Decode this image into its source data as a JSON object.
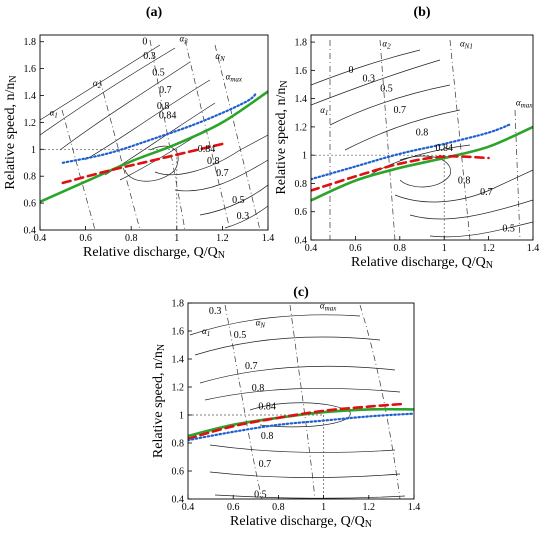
{
  "chart_data": [
    {
      "panel_label": "(a)",
      "type": "line",
      "xlabel": "Relative discharge, Q/QN",
      "ylabel": "Relative speed, n/nN",
      "xlim": [
        0.4,
        1.4
      ],
      "ylim": [
        0.4,
        1.85
      ],
      "xticks": [
        "0.4",
        "0.6",
        "0.8",
        "1",
        "1.2",
        "1.4"
      ],
      "yticks": [
        "0.4",
        "0.6",
        "0.8",
        "1",
        "1.2",
        "1.4",
        "1.6",
        "1.8"
      ],
      "series": [
        {
          "style": "green-solid",
          "color": "#2aa52a",
          "x": [
            0.4,
            0.6,
            0.8,
            1.0,
            1.2,
            1.4
          ],
          "y": [
            0.61,
            0.76,
            0.91,
            1.04,
            1.2,
            1.43
          ]
        },
        {
          "style": "red-dashed",
          "color": "#e01010",
          "x": [
            0.5,
            0.7,
            0.9,
            1.1,
            1.2
          ],
          "y": [
            0.75,
            0.84,
            0.92,
            1.0,
            1.04
          ]
        },
        {
          "style": "blue-dotted",
          "color": "#1f5fcf",
          "x": [
            0.5,
            0.7,
            0.9,
            1.1,
            1.3,
            1.35
          ],
          "y": [
            0.9,
            0.97,
            1.08,
            1.2,
            1.35,
            1.42
          ]
        }
      ],
      "reference_lines": {
        "x": 1.0,
        "y": 1.0
      },
      "contour_labels": [
        {
          "text": "0",
          "x": 0.86,
          "y": 1.78
        },
        {
          "text": "0.3",
          "x": 0.88,
          "y": 1.67
        },
        {
          "text": "0.5",
          "x": 0.92,
          "y": 1.55
        },
        {
          "text": "0.7",
          "x": 0.95,
          "y": 1.42
        },
        {
          "text": "0.8",
          "x": 0.94,
          "y": 1.3
        },
        {
          "text": "0.84",
          "x": 0.96,
          "y": 1.23
        },
        {
          "text": "0.84",
          "x": 1.13,
          "y": 0.98
        },
        {
          "text": "0.8",
          "x": 1.16,
          "y": 0.89
        },
        {
          "text": "0.7",
          "x": 1.2,
          "y": 0.8
        },
        {
          "text": "0.5",
          "x": 1.27,
          "y": 0.6
        },
        {
          "text": "0.3",
          "x": 1.29,
          "y": 0.48
        }
      ],
      "alpha_labels": [
        {
          "text": "α1",
          "x": 0.46,
          "y": 1.25
        },
        {
          "text": "α2",
          "x": 0.65,
          "y": 1.47
        },
        {
          "text": "α3",
          "x": 1.03,
          "y": 1.8
        },
        {
          "text": "αN",
          "x": 1.19,
          "y": 1.67
        },
        {
          "text": "αmax",
          "x": 1.25,
          "y": 1.52
        }
      ]
    },
    {
      "panel_label": "(b)",
      "type": "line",
      "xlabel": "Relative discharge, Q/QN",
      "ylabel": "Relative speed, n/nN",
      "xlim": [
        0.4,
        1.4
      ],
      "ylim": [
        0.4,
        1.85
      ],
      "xticks": [
        "0.4",
        "0.6",
        "0.8",
        "1",
        "1.2",
        "1.4"
      ],
      "yticks": [
        "0.4",
        "0.6",
        "0.8",
        "1",
        "1.2",
        "1.4",
        "1.6",
        "1.8"
      ],
      "series": [
        {
          "style": "green-solid",
          "color": "#2aa52a",
          "x": [
            0.4,
            0.6,
            0.8,
            1.0,
            1.2,
            1.4
          ],
          "y": [
            0.68,
            0.82,
            0.91,
            0.98,
            1.06,
            1.2
          ]
        },
        {
          "style": "red-dashed",
          "color": "#e01010",
          "x": [
            0.4,
            0.6,
            0.8,
            1.0,
            1.2
          ],
          "y": [
            0.75,
            0.85,
            0.94,
            0.99,
            0.98
          ]
        },
        {
          "style": "blue-dotted",
          "color": "#1f5fcf",
          "x": [
            0.4,
            0.6,
            0.8,
            1.0,
            1.2,
            1.3
          ],
          "y": [
            0.83,
            0.92,
            1.01,
            1.08,
            1.16,
            1.22
          ]
        }
      ],
      "reference_lines": {
        "x": 1.0,
        "y": 1.0
      },
      "contour_labels": [
        {
          "text": "0",
          "x": 0.58,
          "y": 1.58
        },
        {
          "text": "0.3",
          "x": 0.66,
          "y": 1.52
        },
        {
          "text": "0.5",
          "x": 0.74,
          "y": 1.45
        },
        {
          "text": "0.7",
          "x": 0.8,
          "y": 1.3
        },
        {
          "text": "0.8",
          "x": 0.9,
          "y": 1.14
        },
        {
          "text": "0.84",
          "x": 1.0,
          "y": 1.03
        },
        {
          "text": "0.8",
          "x": 1.09,
          "y": 0.8
        },
        {
          "text": "0.7",
          "x": 1.19,
          "y": 0.72
        },
        {
          "text": "0.5",
          "x": 1.29,
          "y": 0.46
        }
      ],
      "alpha_labels": [
        {
          "text": "α1",
          "x": 0.46,
          "y": 1.3
        },
        {
          "text": "α2",
          "x": 0.74,
          "y": 1.77
        },
        {
          "text": "αN1",
          "x": 1.1,
          "y": 1.77
        },
        {
          "text": "αmax",
          "x": 1.36,
          "y": 1.35
        }
      ]
    },
    {
      "panel_label": "(c)",
      "type": "line",
      "xlabel": "Relative discharge, Q/QN",
      "ylabel": "Relative speed, n/nN",
      "xlim": [
        0.4,
        1.4
      ],
      "ylim": [
        0.4,
        1.8
      ],
      "xticks": [
        "0.4",
        "0.6",
        "0.8",
        "1",
        "1.2",
        "1.4"
      ],
      "yticks": [
        "0.4",
        "0.6",
        "0.8",
        "1",
        "1.2",
        "1.4",
        "1.6",
        "1.8"
      ],
      "series": [
        {
          "style": "green-solid",
          "color": "#2aa52a",
          "x": [
            0.4,
            0.6,
            0.8,
            1.0,
            1.2,
            1.4
          ],
          "y": [
            0.85,
            0.93,
            0.98,
            1.02,
            1.04,
            1.04
          ]
        },
        {
          "style": "red-dashed",
          "color": "#e01010",
          "x": [
            0.4,
            0.6,
            0.8,
            1.0,
            1.2,
            1.36
          ],
          "y": [
            0.83,
            0.92,
            0.98,
            1.03,
            1.06,
            1.08
          ]
        },
        {
          "style": "blue-dotted",
          "color": "#1f5fcf",
          "x": [
            0.4,
            0.6,
            0.8,
            1.0,
            1.2,
            1.4
          ],
          "y": [
            0.82,
            0.88,
            0.93,
            0.96,
            0.99,
            1.01
          ]
        }
      ],
      "reference_lines": {
        "x": 1.0,
        "y": 1.0
      },
      "contour_labels": [
        {
          "text": "0.3",
          "x": 0.52,
          "y": 1.72
        },
        {
          "text": "0.5",
          "x": 0.63,
          "y": 1.55
        },
        {
          "text": "0.7",
          "x": 0.68,
          "y": 1.33
        },
        {
          "text": "0.8",
          "x": 0.71,
          "y": 1.17
        },
        {
          "text": "0.84",
          "x": 0.75,
          "y": 1.04
        },
        {
          "text": "0.8",
          "x": 0.75,
          "y": 0.83
        },
        {
          "text": "0.7",
          "x": 0.74,
          "y": 0.63
        },
        {
          "text": "0.5",
          "x": 0.72,
          "y": 0.41
        }
      ],
      "alpha_labels": [
        {
          "text": "α1",
          "x": 0.48,
          "y": 1.58
        },
        {
          "text": "αN",
          "x": 0.72,
          "y": 1.64
        },
        {
          "text": "αmax",
          "x": 1.02,
          "y": 1.76
        }
      ]
    }
  ]
}
